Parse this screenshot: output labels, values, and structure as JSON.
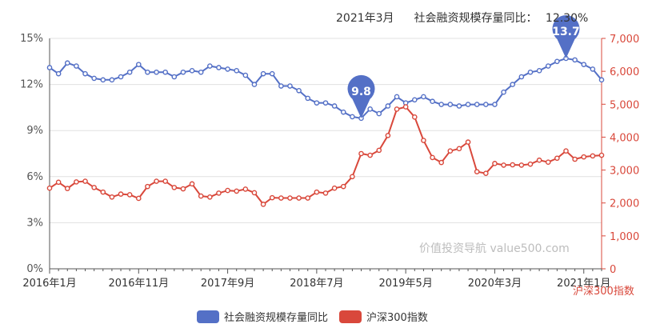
{
  "header": {
    "date": "2021年3月",
    "label": "社会融资规模存量同比：",
    "value": "12.30%"
  },
  "watermark": "价值投资导航 value500.com",
  "right_axis_unit": "沪深300指数",
  "legend": [
    {
      "label": "社会融资规模存量同比",
      "color": "#5470c6"
    },
    {
      "label": "沪深300指数",
      "color": "#d9483b"
    }
  ],
  "chart_data": {
    "type": "line",
    "x": [
      "2016-01",
      "2016-02",
      "2016-03",
      "2016-04",
      "2016-05",
      "2016-06",
      "2016-07",
      "2016-08",
      "2016-09",
      "2016-10",
      "2016-11",
      "2016-12",
      "2017-01",
      "2017-02",
      "2017-03",
      "2017-04",
      "2017-05",
      "2017-06",
      "2017-07",
      "2017-08",
      "2017-09",
      "2017-10",
      "2017-11",
      "2017-12",
      "2018-01",
      "2018-02",
      "2018-03",
      "2018-04",
      "2018-05",
      "2018-06",
      "2018-07",
      "2018-08",
      "2018-09",
      "2018-10",
      "2018-11",
      "2018-12",
      "2019-01",
      "2019-02",
      "2019-03",
      "2019-04",
      "2019-05",
      "2019-06",
      "2019-07",
      "2019-08",
      "2019-09",
      "2019-10",
      "2019-11",
      "2019-12",
      "2020-01",
      "2020-02",
      "2020-03",
      "2020-04",
      "2020-05",
      "2020-06",
      "2020-07",
      "2020-08",
      "2020-09",
      "2020-10",
      "2020-11",
      "2020-12",
      "2021-01",
      "2021-02",
      "2021-03"
    ],
    "x_tick_labels": [
      "2016年1月",
      "2016年11月",
      "2017年9月",
      "2018年7月",
      "2019年5月",
      "2020年3月",
      "2021年1月"
    ],
    "x_tick_indices": [
      0,
      10,
      20,
      30,
      40,
      50,
      60
    ],
    "series": [
      {
        "name": "社会融资规模存量同比",
        "axis": "left",
        "color": "#5470c6",
        "values": [
          13.1,
          12.7,
          13.4,
          13.2,
          12.7,
          12.4,
          12.3,
          12.3,
          12.5,
          12.8,
          13.3,
          12.8,
          12.8,
          12.8,
          12.5,
          12.8,
          12.9,
          12.8,
          13.2,
          13.1,
          13.0,
          12.9,
          12.6,
          12.0,
          12.7,
          12.7,
          11.9,
          11.9,
          11.6,
          11.1,
          10.8,
          10.8,
          10.6,
          10.2,
          9.9,
          9.8,
          10.4,
          10.1,
          10.6,
          11.2,
          10.8,
          11.0,
          11.2,
          10.9,
          10.7,
          10.7,
          10.6,
          10.7,
          10.7,
          10.7,
          10.7,
          11.5,
          12.0,
          12.5,
          12.8,
          12.9,
          13.2,
          13.5,
          13.7,
          13.6,
          13.3,
          13.0,
          12.3
        ]
      },
      {
        "name": "沪深300指数",
        "axis": "right",
        "color": "#d9483b",
        "values": [
          2450,
          2630,
          2440,
          2640,
          2660,
          2470,
          2330,
          2180,
          2270,
          2250,
          2140,
          2500,
          2660,
          2660,
          2470,
          2430,
          2580,
          2210,
          2180,
          2300,
          2380,
          2360,
          2420,
          2310,
          1960,
          2160,
          2150,
          2150,
          2150,
          2150,
          2330,
          2300,
          2450,
          2500,
          2800,
          3500,
          3450,
          3600,
          4050,
          4850,
          4920,
          4610,
          3900,
          3380,
          3230,
          3580,
          3650,
          3850,
          2950,
          2900,
          3200,
          3150,
          3160,
          3150,
          3180,
          3300,
          3240,
          3360,
          3580,
          3330,
          3400,
          3430,
          3450
        ]
      }
    ],
    "yleft": {
      "min": 0,
      "max": 15,
      "ticks": [
        0,
        3,
        6,
        9,
        12,
        15
      ],
      "tick_labels": [
        "0%",
        "3%",
        "6%",
        "9%",
        "12%",
        "15%"
      ]
    },
    "yright": {
      "min": 0,
      "max": 7000,
      "ticks": [
        0,
        1000,
        2000,
        3000,
        4000,
        5000,
        6000,
        7000
      ],
      "tick_labels": [
        "0",
        "1,000",
        "2,000",
        "3,000",
        "4,000",
        "5,000",
        "6,000",
        "7,000"
      ]
    },
    "annotations": [
      {
        "series": 0,
        "index": 35,
        "label": "9.8"
      },
      {
        "series": 0,
        "index": 58,
        "label": "13.7"
      }
    ],
    "grid": true,
    "legend_position": "bottom"
  }
}
